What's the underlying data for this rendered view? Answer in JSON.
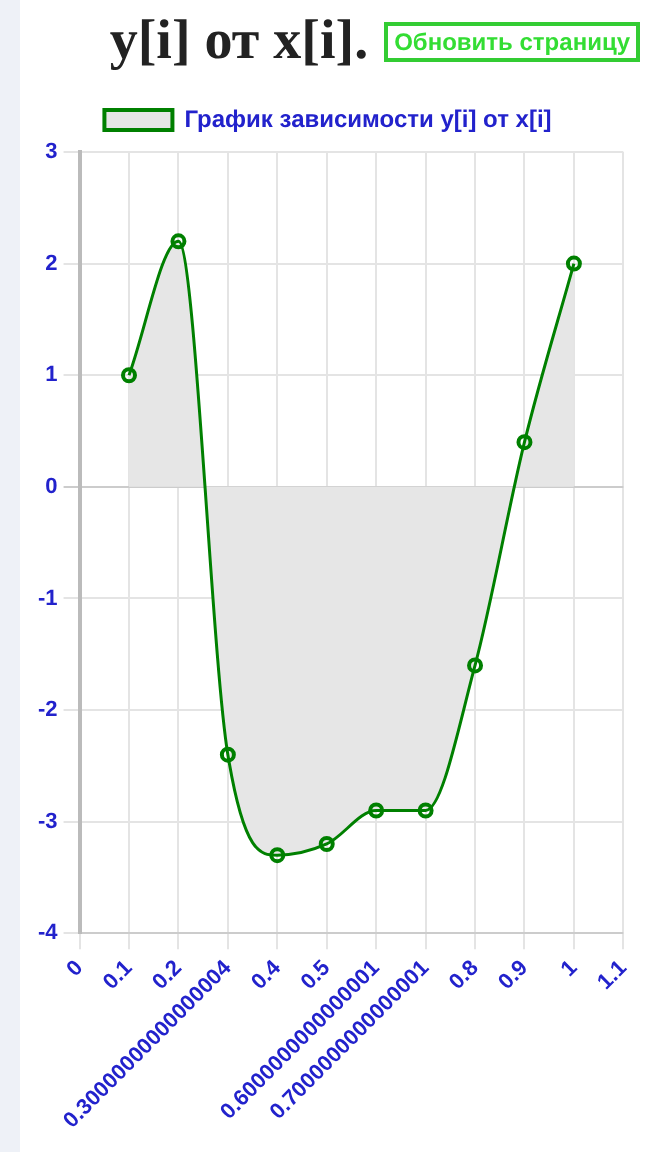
{
  "chart_data": {
    "type": "area",
    "title": "y[i] от x[i].",
    "annotations": [
      "Обновить страницу"
    ],
    "categories": [
      "0",
      "0.1",
      "0.2",
      "0.30000000000000004",
      "0.4",
      "0.5",
      "0.6000000000000001",
      "0.7000000000000001",
      "0.8",
      "0.9",
      "1",
      "1.1"
    ],
    "series": [
      {
        "name": "График зависимости y[i] от x[i]",
        "color": "#008000",
        "values": [
          null,
          1,
          2.2,
          -2.4,
          -3.3,
          -3.2,
          -2.9,
          -2.9,
          -1.6,
          0.4,
          2,
          null
        ]
      }
    ],
    "ylim": [
      -4,
      3
    ],
    "yticks": [
      -4,
      -3,
      -2,
      -1,
      0,
      1,
      2,
      3
    ],
    "grid": true,
    "legend": "top",
    "marker": "circle"
  }
}
